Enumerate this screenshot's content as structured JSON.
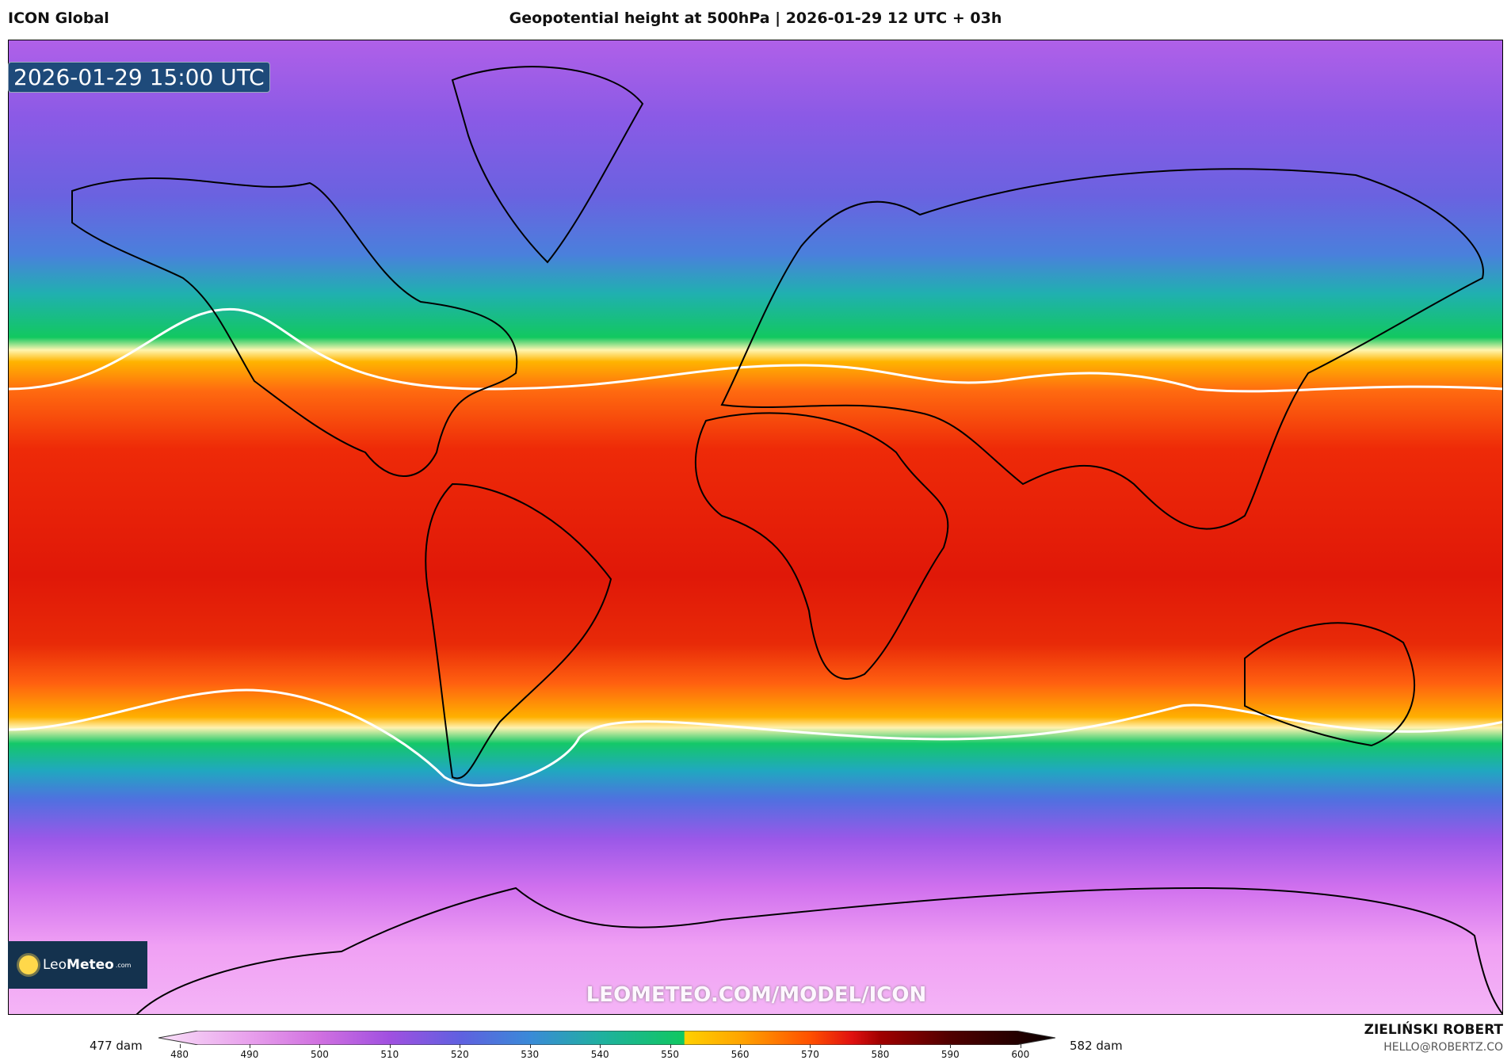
{
  "header": {
    "model": "ICON Global",
    "title": "Geopotential height at 500hPa | 2026-01-29 12 UTC + 03h"
  },
  "map": {
    "valid_time": "2026-01-29 15:00 UTC",
    "watermark": "LEOMETEO.COM/MODEL/ICON",
    "logo": {
      "text_light": "Leo",
      "text_bold": "Meteo",
      "suffix": ".com"
    }
  },
  "colorbar": {
    "unit": "dam",
    "min_label": "477 dam",
    "max_label": "582 dam",
    "ticks": [
      "480",
      "490",
      "500",
      "510",
      "520",
      "530",
      "540",
      "550",
      "560",
      "570",
      "580",
      "590",
      "600"
    ],
    "stops": [
      [
        477,
        "#fbe4fb"
      ],
      [
        480,
        "#f5d0f5"
      ],
      [
        490,
        "#e8a0ec"
      ],
      [
        500,
        "#d070e0"
      ],
      [
        510,
        "#a050e0"
      ],
      [
        520,
        "#6060e0"
      ],
      [
        530,
        "#3a8ad8"
      ],
      [
        540,
        "#20b0a0"
      ],
      [
        552,
        "#10c860"
      ],
      [
        552.1,
        "#ffd000"
      ],
      [
        560,
        "#ffa500"
      ],
      [
        570,
        "#ff5000"
      ],
      [
        576,
        "#e01010"
      ],
      [
        580,
        "#a00000"
      ],
      [
        590,
        "#500000"
      ],
      [
        605,
        "#0a0000"
      ]
    ]
  },
  "credits": {
    "author": "ZIELIŃSKI ROBERT",
    "email": "HELLO@ROBERTZ.CO"
  }
}
